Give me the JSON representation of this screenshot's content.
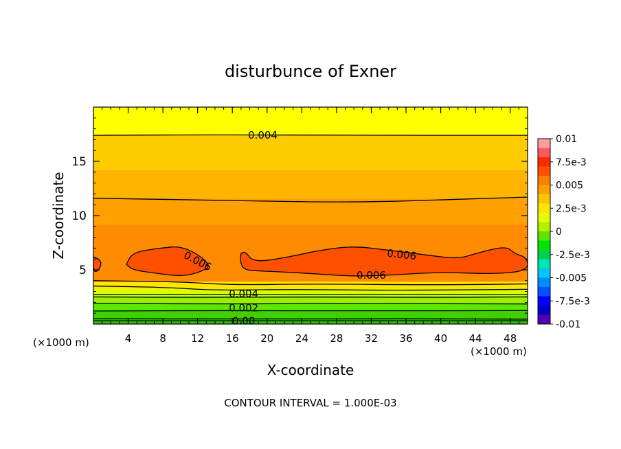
{
  "chart_data": {
    "type": "heatmap",
    "title": "disturbunce of Exner",
    "xlabel": "X-coordinate",
    "ylabel": "Z-coordinate",
    "x_unit_left": "(×1000 m)",
    "x_unit_right": "(×1000 m)",
    "footer": "CONTOUR INTERVAL = 1.000E-03",
    "xlim": [
      0,
      50
    ],
    "ylim": [
      0,
      20
    ],
    "x_ticks": [
      4,
      8,
      12,
      16,
      20,
      24,
      28,
      32,
      36,
      40,
      44,
      48
    ],
    "x_tick_labels": [
      "4",
      "8",
      "12",
      "16",
      "20",
      "24",
      "28",
      "32",
      "36",
      "40",
      "44",
      "48"
    ],
    "y_ticks": [
      5,
      10,
      15
    ],
    "y_tick_labels": [
      "5",
      "10",
      "15"
    ],
    "grid": false,
    "contour_interval": 0.001,
    "color_levels": [
      -0.01,
      -0.0075,
      -0.005,
      -0.0025,
      0,
      0.0025,
      0.005,
      0.0075,
      0.01
    ],
    "colorbar_labels": [
      "0.01",
      "7.5e-3",
      "0.005",
      "2.5e-3",
      "0",
      "-2.5e-3",
      "-0.005",
      "-7.5e-3",
      "-0.01"
    ],
    "colorbar_colors": [
      "#ff9f9f",
      "#ff5a5a",
      "#ff2a00",
      "#ff5000",
      "#ff7e00",
      "#ffa000",
      "#ffc400",
      "#ffe600",
      "#e6ff00",
      "#b4f000",
      "#5ae600",
      "#00e600",
      "#00d250",
      "#00e6b4",
      "#00c8ff",
      "#008cff",
      "#0050ff",
      "#0000ff",
      "#0000c8",
      "#5000b4"
    ],
    "horizontal_bands": [
      {
        "z_top": 0.5,
        "color": "#2fbe00"
      },
      {
        "z_top": 1.2,
        "color": "#3fd000"
      },
      {
        "z_top": 1.9,
        "color": "#5ce600"
      },
      {
        "z_top": 2.6,
        "color": "#9af000"
      },
      {
        "z_top": 3.2,
        "color": "#d6ff00"
      },
      {
        "z_top": 3.9,
        "color": "#ffe600"
      },
      {
        "z_top": 9.2,
        "color": "#ff8c00"
      },
      {
        "z_top": 11.6,
        "color": "#ffa000"
      },
      {
        "z_top": 14.2,
        "color": "#ffb400"
      },
      {
        "z_top": 17.4,
        "color": "#ffcc00"
      },
      {
        "z_top": 20,
        "color": "#ffff00"
      }
    ],
    "high_region_color": "#ff5000",
    "high_regions": [
      [
        [
          0,
          6.2
        ],
        [
          0.8,
          5.9
        ],
        [
          0.9,
          5.4
        ],
        [
          0.4,
          4.8
        ],
        [
          0,
          4.9
        ]
      ],
      [
        [
          3.8,
          5.5
        ],
        [
          4.5,
          6.6
        ],
        [
          7.5,
          7.0
        ],
        [
          10.5,
          7.2
        ],
        [
          13.8,
          5.4
        ],
        [
          12,
          4.7
        ],
        [
          10,
          4.4
        ],
        [
          7,
          4.7
        ],
        [
          4.5,
          5.0
        ]
      ],
      [
        [
          17.0,
          6.5
        ],
        [
          17.5,
          6.7
        ],
        [
          18.4,
          5.7
        ],
        [
          22,
          6.1
        ],
        [
          26,
          6.8
        ],
        [
          30,
          7.2
        ],
        [
          34,
          6.8
        ],
        [
          38,
          6.4
        ],
        [
          42,
          6.0
        ],
        [
          44,
          6.5
        ],
        [
          47.5,
          7.2
        ],
        [
          48.5,
          6.5
        ],
        [
          50,
          6.1
        ],
        [
          50,
          4.9
        ],
        [
          46,
          4.6
        ],
        [
          40,
          4.8
        ],
        [
          34,
          4.5
        ],
        [
          30,
          4.4
        ],
        [
          26,
          4.6
        ],
        [
          22,
          4.8
        ],
        [
          19,
          4.9
        ],
        [
          17.3,
          5.0
        ],
        [
          16.9,
          5.8
        ]
      ]
    ],
    "contour_lines": [
      {
        "points": [
          [
            0,
            17.4
          ],
          [
            15,
            17.45
          ],
          [
            30,
            17.4
          ],
          [
            50,
            17.4
          ]
        ]
      },
      {
        "points": [
          [
            0,
            11.6
          ],
          [
            15,
            11.4
          ],
          [
            30,
            11.2
          ],
          [
            42,
            11.5
          ],
          [
            50,
            11.7
          ]
        ]
      },
      {
        "points": [
          [
            0,
            4.0
          ],
          [
            10,
            3.9
          ],
          [
            16,
            3.6
          ],
          [
            25,
            3.7
          ],
          [
            40,
            3.6
          ],
          [
            50,
            3.7
          ]
        ]
      },
      {
        "points": [
          [
            0,
            3.5
          ],
          [
            8,
            3.4
          ],
          [
            14,
            3.1
          ],
          [
            22,
            3.2
          ],
          [
            35,
            3.1
          ],
          [
            50,
            3.2
          ]
        ]
      },
      {
        "points": [
          [
            0,
            2.7
          ],
          [
            10,
            2.75
          ],
          [
            20,
            2.7
          ],
          [
            35,
            2.75
          ],
          [
            50,
            2.7
          ]
        ]
      },
      {
        "points": [
          [
            0,
            2.5
          ],
          [
            10,
            2.45
          ],
          [
            25,
            2.5
          ],
          [
            40,
            2.45
          ],
          [
            50,
            2.5
          ]
        ]
      },
      {
        "points": [
          [
            0,
            1.9
          ],
          [
            15,
            1.85
          ],
          [
            30,
            1.9
          ],
          [
            50,
            1.85
          ]
        ]
      },
      {
        "points": [
          [
            0,
            1.2
          ],
          [
            15,
            1.25
          ],
          [
            30,
            1.2
          ],
          [
            50,
            1.25
          ]
        ]
      },
      {
        "points": [
          [
            0,
            0.5
          ],
          [
            20,
            0.45
          ],
          [
            35,
            0.5
          ],
          [
            50,
            0.45
          ]
        ]
      },
      {
        "points": [
          [
            0,
            0.3
          ],
          [
            20,
            0.3
          ],
          [
            50,
            0.3
          ]
        ]
      }
    ],
    "contour_labels": [
      {
        "text": "0.004",
        "x": 19.5,
        "z": 17.4,
        "angle": 0
      },
      {
        "text": "0.006",
        "x": 12.0,
        "z": 5.8,
        "angle": 28
      },
      {
        "text": "0.006",
        "x": 35.5,
        "z": 6.4,
        "angle": 6
      },
      {
        "text": "0.006",
        "x": 32.0,
        "z": 4.5,
        "angle": 0
      },
      {
        "text": "0.004",
        "x": 17.3,
        "z": 2.8,
        "angle": 0
      },
      {
        "text": "0.002",
        "x": 17.3,
        "z": 1.5,
        "angle": 0
      },
      {
        "text": "0.00",
        "x": 17.3,
        "z": 0.3,
        "angle": 0
      }
    ]
  }
}
